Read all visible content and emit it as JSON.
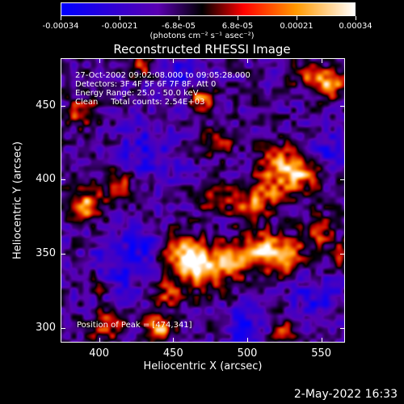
{
  "colorbar": {
    "ticks": [
      "-0.00034",
      "-0.00021",
      "-6.8e-05",
      "6.8e-05",
      "0.00021",
      "0.00034"
    ],
    "units_label": "(photons cm⁻² s⁻¹ asec⁻²)",
    "colors": [
      "#0000ff",
      "#5a00b0",
      "#000000",
      "#ff0000",
      "#ff9900",
      "#ffffff"
    ]
  },
  "title": "Reconstructed RHESSI Image",
  "info": {
    "time_range": "27-Oct-2002 09:02:08.000 to 09:05:28.000",
    "detectors": "Detectors: 3F 4F 5F 6F 7F 8F, Att 0",
    "energy": "Energy Range: 25.0 - 50.0 keV",
    "method": "Clean     Total counts: 2.54E+03"
  },
  "peak_text": "Position of Peak = [474,341]",
  "axes": {
    "xlabel": "Heliocentric X (arcsec)",
    "ylabel": "Heliocentric Y (arcsec)",
    "xticks": [
      "400",
      "450",
      "500",
      "550"
    ],
    "yticks": [
      "300",
      "350",
      "400",
      "450"
    ],
    "xlim": [
      374,
      566
    ],
    "ylim": [
      290,
      482
    ]
  },
  "datestamp": "2-May-2022 16:33",
  "blobs": [
    {
      "x": 468,
      "y": 342,
      "a": 1.0,
      "s": 10
    },
    {
      "x": 455,
      "y": 352,
      "a": 0.8,
      "s": 9
    },
    {
      "x": 490,
      "y": 345,
      "a": 0.7,
      "s": 9
    },
    {
      "x": 510,
      "y": 352,
      "a": 0.9,
      "s": 9
    },
    {
      "x": 527,
      "y": 348,
      "a": 0.8,
      "s": 8
    },
    {
      "x": 534,
      "y": 405,
      "a": 0.95,
      "s": 9
    },
    {
      "x": 518,
      "y": 412,
      "a": 0.6,
      "s": 8
    },
    {
      "x": 513,
      "y": 392,
      "a": 0.65,
      "s": 8
    },
    {
      "x": 500,
      "y": 383,
      "a": 0.6,
      "s": 8
    },
    {
      "x": 478,
      "y": 388,
      "a": 0.55,
      "s": 7
    },
    {
      "x": 480,
      "y": 425,
      "a": 0.5,
      "s": 7
    },
    {
      "x": 468,
      "y": 455,
      "a": 0.75,
      "s": 6
    },
    {
      "x": 413,
      "y": 397,
      "a": 0.7,
      "s": 7
    },
    {
      "x": 391,
      "y": 383,
      "a": 0.9,
      "s": 7
    },
    {
      "x": 388,
      "y": 445,
      "a": 0.6,
      "s": 7
    },
    {
      "x": 430,
      "y": 478,
      "a": 0.5,
      "s": 6
    },
    {
      "x": 555,
      "y": 465,
      "a": 0.9,
      "s": 7
    },
    {
      "x": 540,
      "y": 470,
      "a": 0.5,
      "s": 6
    },
    {
      "x": 547,
      "y": 365,
      "a": 0.6,
      "s": 7
    },
    {
      "x": 440,
      "y": 300,
      "a": 0.9,
      "s": 6
    },
    {
      "x": 405,
      "y": 302,
      "a": 0.6,
      "s": 8
    },
    {
      "x": 447,
      "y": 323,
      "a": 0.55,
      "s": 7
    },
    {
      "x": 525,
      "y": 298,
      "a": 0.55,
      "s": 7
    },
    {
      "x": 398,
      "y": 330,
      "a": 0.5,
      "s": 6
    },
    {
      "x": 565,
      "y": 350,
      "a": 0.4,
      "s": 7
    }
  ],
  "holes": [
    {
      "x": 432,
      "y": 420,
      "s": 14
    },
    {
      "x": 410,
      "y": 340,
      "s": 14
    },
    {
      "x": 500,
      "y": 300,
      "s": 11
    },
    {
      "x": 545,
      "y": 320,
      "s": 11
    },
    {
      "x": 430,
      "y": 355,
      "s": 9
    },
    {
      "x": 455,
      "y": 470,
      "s": 9
    },
    {
      "x": 555,
      "y": 420,
      "s": 8
    }
  ]
}
